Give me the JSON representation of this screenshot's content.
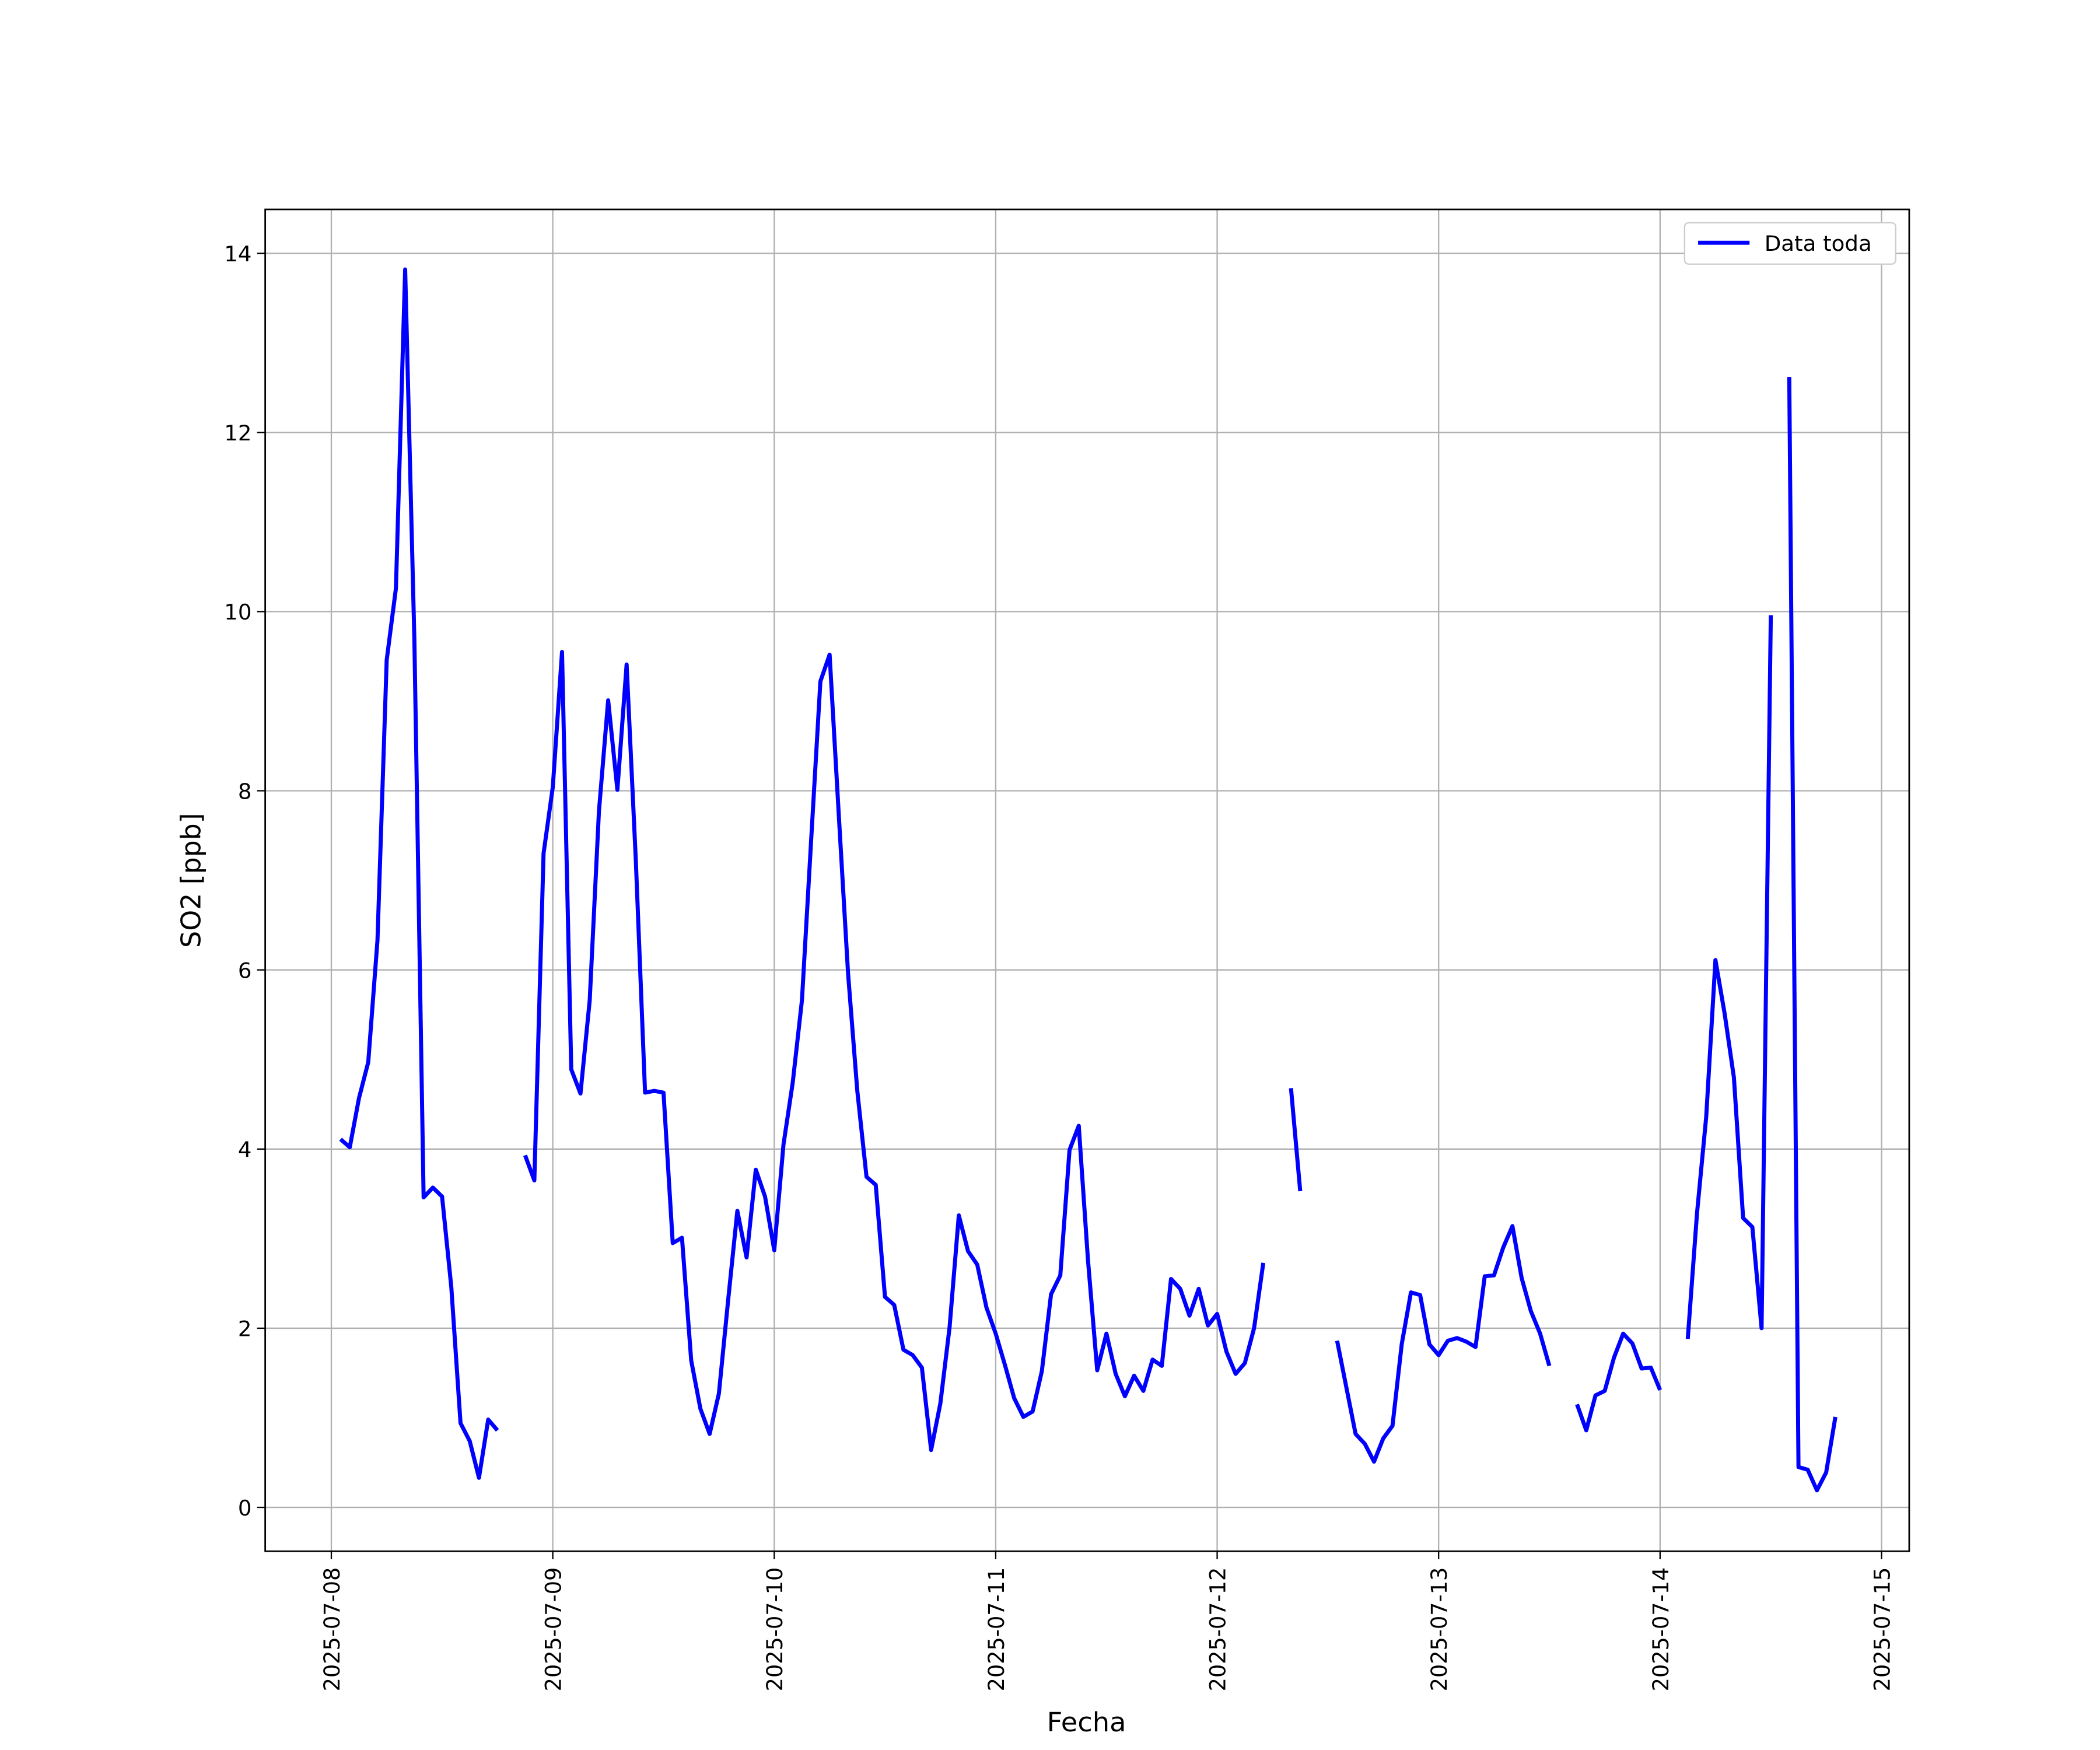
{
  "chart_data": {
    "type": "line",
    "x_label": "Fecha",
    "y_label": "SO2 [ppb]",
    "x": [
      "2025-07-08 01:00",
      "2025-07-08 02:00",
      "2025-07-08 03:00",
      "2025-07-08 04:00",
      "2025-07-08 05:00",
      "2025-07-08 06:00",
      "2025-07-08 07:00",
      "2025-07-08 08:00",
      "2025-07-08 09:00",
      "2025-07-08 10:00",
      "2025-07-08 11:00",
      "2025-07-08 12:00",
      "2025-07-08 13:00",
      "2025-07-08 14:00",
      "2025-07-08 15:00",
      "2025-07-08 16:00",
      "2025-07-08 17:00",
      "2025-07-08 18:00",
      "2025-07-08 19:00",
      "2025-07-08 20:00",
      "2025-07-08 21:00",
      "2025-07-08 22:00",
      "2025-07-08 23:00",
      "2025-07-09 00:00",
      "2025-07-09 01:00",
      "2025-07-09 02:00",
      "2025-07-09 03:00",
      "2025-07-09 04:00",
      "2025-07-09 05:00",
      "2025-07-09 06:00",
      "2025-07-09 07:00",
      "2025-07-09 08:00",
      "2025-07-09 09:00",
      "2025-07-09 10:00",
      "2025-07-09 11:00",
      "2025-07-09 12:00",
      "2025-07-09 13:00",
      "2025-07-09 14:00",
      "2025-07-09 15:00",
      "2025-07-09 16:00",
      "2025-07-09 17:00",
      "2025-07-09 18:00",
      "2025-07-09 19:00",
      "2025-07-09 20:00",
      "2025-07-09 21:00",
      "2025-07-09 22:00",
      "2025-07-09 23:00",
      "2025-07-10 00:00",
      "2025-07-10 01:00",
      "2025-07-10 02:00",
      "2025-07-10 03:00",
      "2025-07-10 04:00",
      "2025-07-10 05:00",
      "2025-07-10 06:00",
      "2025-07-10 07:00",
      "2025-07-10 08:00",
      "2025-07-10 09:00",
      "2025-07-10 10:00",
      "2025-07-10 11:00",
      "2025-07-10 12:00",
      "2025-07-10 13:00",
      "2025-07-10 14:00",
      "2025-07-10 15:00",
      "2025-07-10 16:00",
      "2025-07-10 17:00",
      "2025-07-10 18:00",
      "2025-07-10 19:00",
      "2025-07-10 20:00",
      "2025-07-10 21:00",
      "2025-07-10 22:00",
      "2025-07-10 23:00",
      "2025-07-11 00:00",
      "2025-07-11 01:00",
      "2025-07-11 02:00",
      "2025-07-11 03:00",
      "2025-07-11 04:00",
      "2025-07-11 05:00",
      "2025-07-11 06:00",
      "2025-07-11 07:00",
      "2025-07-11 08:00",
      "2025-07-11 09:00",
      "2025-07-11 10:00",
      "2025-07-11 11:00",
      "2025-07-11 12:00",
      "2025-07-11 13:00",
      "2025-07-11 14:00",
      "2025-07-11 15:00",
      "2025-07-11 16:00",
      "2025-07-11 17:00",
      "2025-07-11 18:00",
      "2025-07-11 19:00",
      "2025-07-11 20:00",
      "2025-07-11 21:00",
      "2025-07-11 22:00",
      "2025-07-11 23:00",
      "2025-07-12 00:00",
      "2025-07-12 01:00",
      "2025-07-12 02:00",
      "2025-07-12 03:00",
      "2025-07-12 04:00",
      "2025-07-12 05:00",
      "2025-07-12 06:00",
      "2025-07-12 07:00",
      "2025-07-12 08:00",
      "2025-07-12 09:00",
      "2025-07-12 10:00",
      "2025-07-12 11:00",
      "2025-07-12 12:00",
      "2025-07-12 13:00",
      "2025-07-12 14:00",
      "2025-07-12 15:00",
      "2025-07-12 16:00",
      "2025-07-12 17:00",
      "2025-07-12 18:00",
      "2025-07-12 19:00",
      "2025-07-12 20:00",
      "2025-07-12 21:00",
      "2025-07-12 22:00",
      "2025-07-12 23:00",
      "2025-07-13 00:00",
      "2025-07-13 01:00",
      "2025-07-13 02:00",
      "2025-07-13 03:00",
      "2025-07-13 04:00",
      "2025-07-13 05:00",
      "2025-07-13 06:00",
      "2025-07-13 07:00",
      "2025-07-13 08:00",
      "2025-07-13 09:00",
      "2025-07-13 10:00",
      "2025-07-13 11:00",
      "2025-07-13 12:00",
      "2025-07-13 13:00",
      "2025-07-13 14:00",
      "2025-07-13 15:00",
      "2025-07-13 16:00",
      "2025-07-13 17:00",
      "2025-07-13 18:00",
      "2025-07-13 19:00",
      "2025-07-13 20:00",
      "2025-07-13 21:00",
      "2025-07-13 22:00",
      "2025-07-13 23:00",
      "2025-07-14 00:00",
      "2025-07-14 01:00",
      "2025-07-14 02:00",
      "2025-07-14 03:00",
      "2025-07-14 04:00",
      "2025-07-14 05:00",
      "2025-07-14 06:00",
      "2025-07-14 07:00",
      "2025-07-14 08:00",
      "2025-07-14 09:00",
      "2025-07-14 10:00",
      "2025-07-14 11:00",
      "2025-07-14 12:00",
      "2025-07-14 13:00",
      "2025-07-14 14:00",
      "2025-07-14 15:00",
      "2025-07-14 16:00",
      "2025-07-14 17:00",
      "2025-07-14 18:00",
      "2025-07-14 19:00"
    ],
    "series": [
      {
        "name": "Data toda",
        "color": "#0000ff",
        "values": [
          4.11,
          4.02,
          4.57,
          4.97,
          6.33,
          9.46,
          10.26,
          13.82,
          9.68,
          3.46,
          3.57,
          3.47,
          2.46,
          0.94,
          0.74,
          0.33,
          0.98,
          0.86,
          null,
          null,
          3.93,
          3.65,
          7.3,
          8.04,
          9.55,
          4.89,
          4.62,
          5.66,
          7.77,
          9.01,
          8.01,
          9.41,
          7.22,
          4.63,
          4.65,
          4.63,
          2.95,
          3.01,
          1.64,
          1.1,
          0.82,
          1.27,
          2.31,
          3.31,
          2.79,
          3.77,
          3.47,
          2.87,
          4.05,
          4.74,
          5.66,
          7.45,
          9.22,
          9.52,
          7.72,
          5.96,
          4.65,
          3.69,
          3.6,
          2.35,
          2.26,
          1.76,
          1.7,
          1.56,
          0.64,
          1.16,
          2.01,
          3.26,
          2.86,
          2.71,
          2.23,
          1.94,
          1.59,
          1.22,
          1.01,
          1.07,
          1.52,
          2.38,
          2.59,
          3.99,
          4.26,
          2.76,
          1.53,
          1.94,
          1.49,
          1.24,
          1.47,
          1.3,
          1.65,
          1.58,
          2.55,
          2.44,
          2.14,
          2.44,
          2.03,
          2.16,
          1.74,
          1.49,
          1.61,
          2.0,
          2.73,
          null,
          null,
          4.68,
          3.53,
          null,
          null,
          null,
          1.86,
          1.34,
          0.82,
          0.71,
          0.51,
          0.77,
          0.91,
          1.82,
          2.4,
          2.37,
          1.82,
          1.7,
          1.86,
          1.89,
          1.85,
          1.79,
          2.58,
          2.59,
          2.9,
          3.14,
          2.56,
          2.19,
          1.94,
          1.58,
          null,
          null,
          1.15,
          0.86,
          1.25,
          1.3,
          1.67,
          1.94,
          1.83,
          1.55,
          1.56,
          1.31,
          null,
          null,
          1.88,
          3.28,
          4.36,
          6.11,
          5.51,
          4.8,
          3.23,
          3.13,
          2.0,
          9.96,
          null,
          12.62,
          0.45,
          0.42,
          0.19,
          0.39,
          1.01
        ]
      }
    ],
    "xlim": [
      "2025-07-07 16:50",
      "2025-07-15 03:00"
    ],
    "xticks": [
      "2025-07-08",
      "2025-07-09",
      "2025-07-10",
      "2025-07-11",
      "2025-07-12",
      "2025-07-13",
      "2025-07-14",
      "2025-07-15"
    ],
    "ylim": [
      -0.49,
      14.49
    ],
    "yticks": [
      0,
      2,
      4,
      6,
      8,
      10,
      12,
      14
    ],
    "grid": true,
    "legend": "upper right"
  }
}
